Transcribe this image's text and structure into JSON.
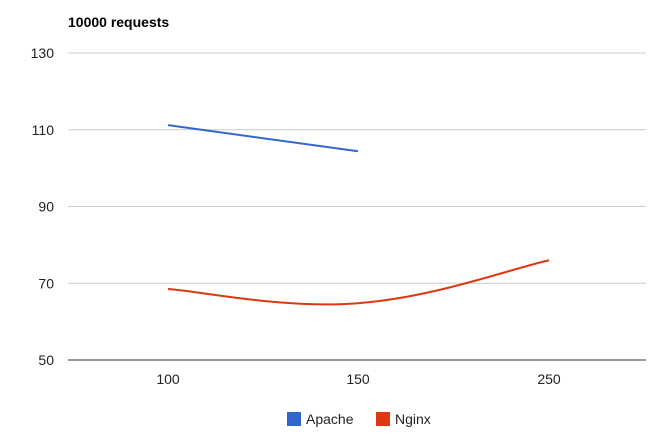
{
  "chart_data": {
    "type": "line",
    "title": "10000 requests",
    "xlabel": "",
    "ylabel": "",
    "categories": [
      "100",
      "150",
      "250"
    ],
    "ylim": [
      50,
      130
    ],
    "yticks": [
      50,
      70,
      90,
      110,
      130
    ],
    "grid": true,
    "legend_position": "bottom",
    "series": [
      {
        "name": "Apache",
        "color": "#3366cc",
        "values": [
          111.2,
          104.4,
          null
        ],
        "smooth": false
      },
      {
        "name": "Nginx",
        "color": "#dc3912",
        "values": [
          68.5,
          64.8,
          76.0
        ],
        "smooth": true
      }
    ]
  }
}
